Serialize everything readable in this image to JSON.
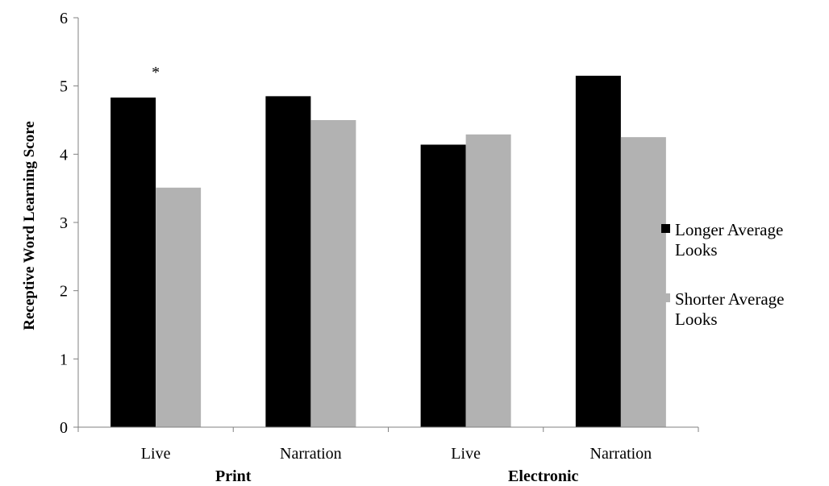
{
  "chart_data": {
    "type": "bar",
    "title": "",
    "xlabel": "",
    "ylabel": "Receptive Word Learning Score",
    "ylim": [
      0,
      6
    ],
    "yticks": [
      0,
      1,
      2,
      3,
      4,
      5,
      6
    ],
    "grid": false,
    "legend_position": "right",
    "categories": [
      "Live",
      "Narration",
      "Live",
      "Narration"
    ],
    "groups": [
      {
        "label": "Print",
        "categories": [
          0,
          1
        ]
      },
      {
        "label": "Electronic",
        "categories": [
          2,
          3
        ]
      }
    ],
    "series": [
      {
        "name": "Longer Average Looks",
        "legend_lines": [
          "Longer Average",
          "Looks"
        ],
        "color": "#000000",
        "values": [
          4.83,
          4.85,
          4.14,
          5.15
        ]
      },
      {
        "name": "Shorter Average Looks",
        "legend_lines": [
          "Shorter Average",
          "Looks"
        ],
        "color": "#b2b2b2",
        "values": [
          3.51,
          4.5,
          4.29,
          4.25
        ]
      }
    ],
    "annotations": [
      {
        "text": "*",
        "category": 0
      }
    ]
  }
}
